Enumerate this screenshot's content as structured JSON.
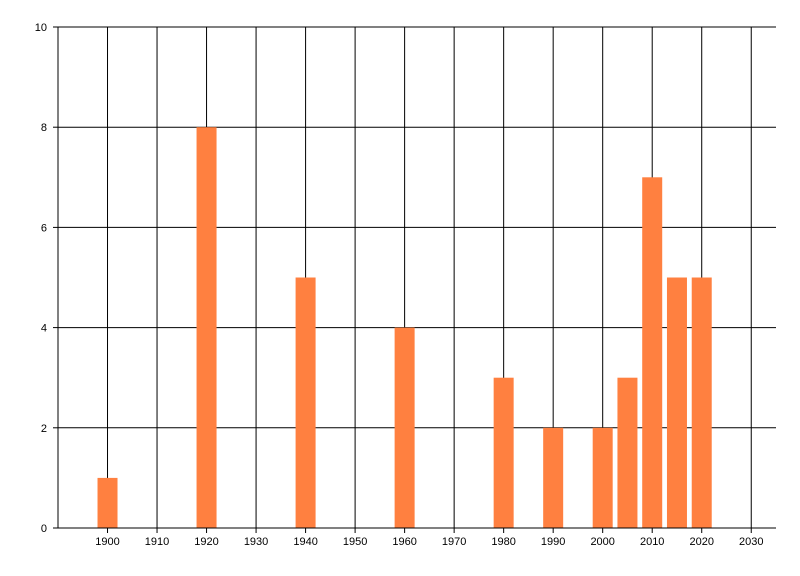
{
  "chart_data": {
    "type": "bar",
    "title": "",
    "xlabel": "",
    "ylabel": "",
    "x": [
      1900,
      1920,
      1940,
      1960,
      1980,
      1990,
      2000,
      2005,
      2010,
      2015,
      2020
    ],
    "values": [
      1,
      8,
      5,
      4,
      3,
      2,
      2,
      3,
      7,
      5,
      5
    ],
    "xlim": [
      1890,
      2035
    ],
    "ylim": [
      0,
      10
    ],
    "x_ticks": [
      1900,
      1910,
      1920,
      1930,
      1940,
      1950,
      1960,
      1970,
      1980,
      1990,
      2000,
      2010,
      2020,
      2030
    ],
    "y_ticks": [
      0,
      2,
      4,
      6,
      8,
      10
    ],
    "grid": true,
    "legend": "none",
    "bar_color": "#ff8040"
  }
}
